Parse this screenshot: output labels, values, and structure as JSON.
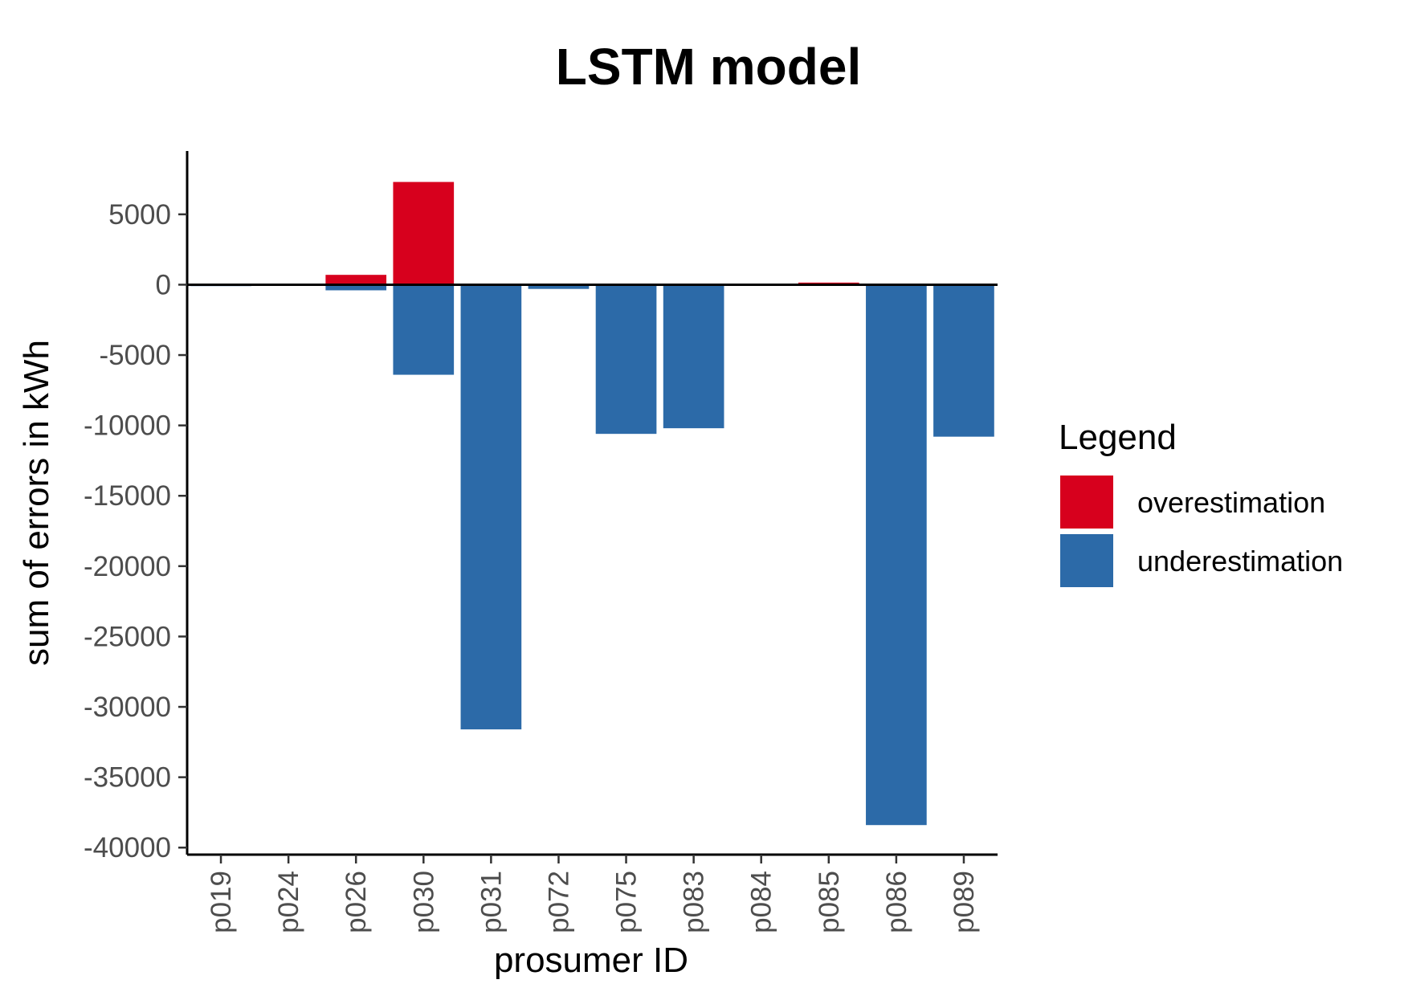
{
  "chart_data": {
    "type": "bar",
    "title": "LSTM model",
    "xlabel": "prosumer ID",
    "ylabel": "sum of errors in kWh",
    "categories": [
      "p019",
      "p024",
      "p026",
      "p030",
      "p031",
      "p072",
      "p075",
      "p083",
      "p084",
      "p085",
      "p086",
      "p089"
    ],
    "series": [
      {
        "name": "overestimation",
        "color": "#d7001d",
        "values": [
          0,
          0,
          700,
          7300,
          0,
          0,
          0,
          0,
          0,
          150,
          0,
          0
        ]
      },
      {
        "name": "underestimation",
        "color": "#2c6aa8",
        "values": [
          -100,
          0,
          -400,
          -6400,
          -31600,
          -300,
          -10600,
          -10200,
          0,
          0,
          -38400,
          -10800
        ]
      }
    ],
    "ylim": [
      -40500,
      9500
    ],
    "yticks": [
      5000,
      0,
      -5000,
      -10000,
      -15000,
      -20000,
      -25000,
      -30000,
      -35000,
      -40000
    ],
    "ytick_labels": [
      "5000",
      "0",
      "-5000",
      "-10000",
      "-15000",
      "-20000",
      "-25000",
      "-30000",
      "-35000",
      "-40000"
    ],
    "zero_line": true,
    "grid": false,
    "legend": {
      "title": "Legend",
      "position": "right"
    }
  }
}
